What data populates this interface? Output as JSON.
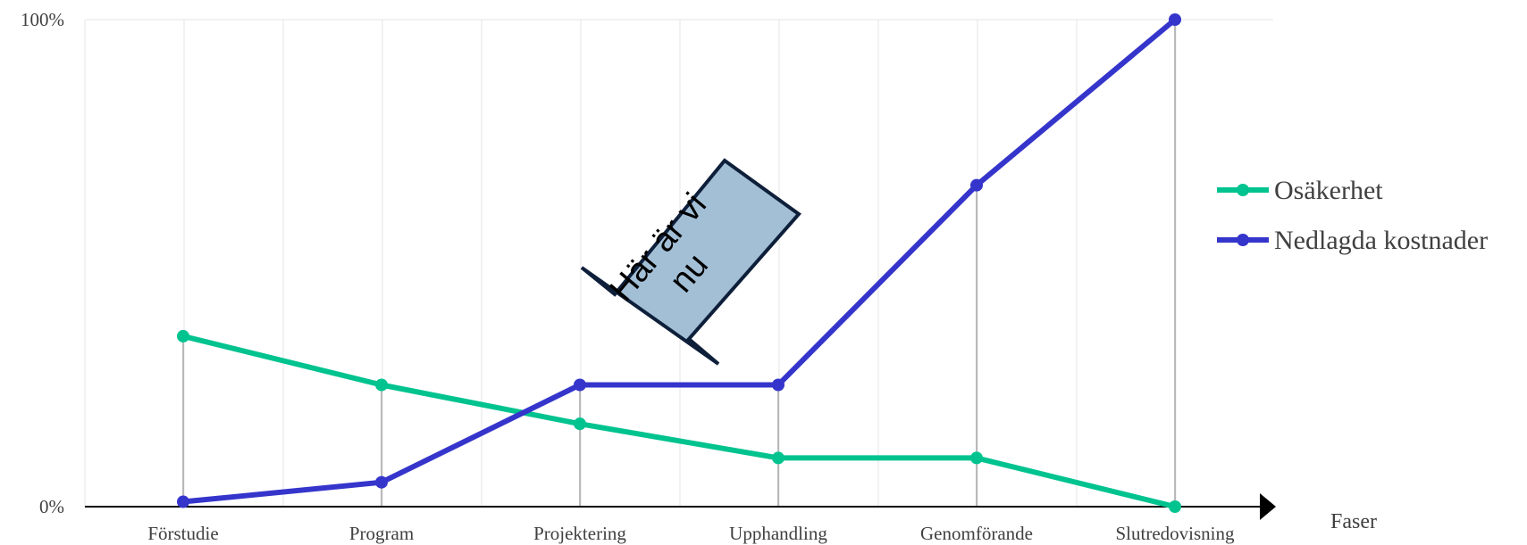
{
  "chart_data": {
    "type": "line",
    "categories": [
      "Förstudie",
      "Program",
      "Projektering",
      "Upphandling",
      "Genomförande",
      "Slutredovisning"
    ],
    "series": [
      {
        "name": "Osäkerhet",
        "color": "#00C38F",
        "values": [
          35,
          25,
          17,
          10,
          10,
          0
        ]
      },
      {
        "name": "Nedlagda kostnader",
        "color": "#3535CC",
        "values": [
          1,
          5,
          25,
          25,
          66,
          100
        ]
      }
    ],
    "ylim": [
      0,
      100
    ],
    "y_tick_labels": [
      "0%",
      "100%"
    ],
    "xlabel": "Faser",
    "legend_position": "right",
    "grid": true,
    "annotation": {
      "text": "Här är vi nu",
      "target_category": "Projektering",
      "fill": "#A3BFD6",
      "stroke": "#0E1F3A"
    }
  }
}
